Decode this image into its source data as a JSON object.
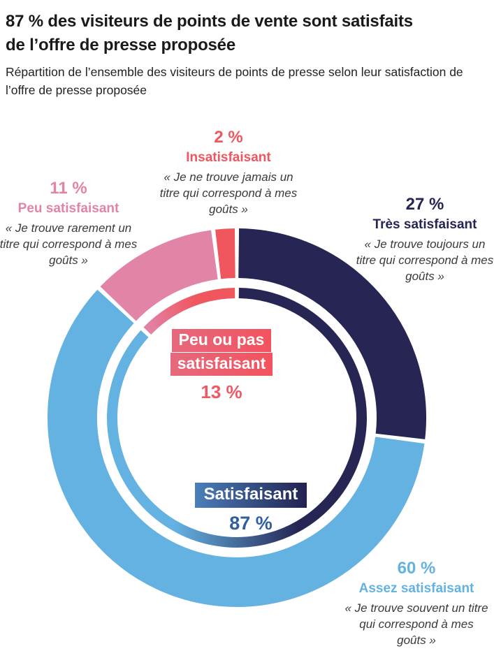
{
  "palette": {
    "navy": "#262553",
    "light_blue": "#64b2e2",
    "pink": "#e283a8",
    "red": "#f0565e",
    "value_red_text": "#ef5964",
    "value_blue_text": "#2f5f9e",
    "title_text": "#1a1a1a",
    "quote_text": "#3a3a3a"
  },
  "header": {
    "title_line1": "87 % des visiteurs de points de vente sont satisfaits",
    "title_line2": "de l’offre de presse proposée",
    "subtitle": "Répartition de l’ensemble des visiteurs de points de presse selon leur satisfaction de l’offre de presse proposée"
  },
  "callouts": {
    "insatisfaisant": {
      "pct": "2 %",
      "name": "Insatisfaisant",
      "quote": "« Je ne trouve jamais un titre qui correspond à mes goûts »"
    },
    "peu_satisfaisant": {
      "pct": "11 %",
      "name": "Peu satisfaisant",
      "quote": "« Je trouve rarement un titre qui correspond à mes goûts »"
    },
    "tres_satisfaisant": {
      "pct": "27 %",
      "name": "Très satisfaisant",
      "quote": "« Je trouve toujours un titre qui correspond à mes goûts »"
    },
    "assez_satisfaisant": {
      "pct": "60 %",
      "name": "Assez satisfaisant",
      "quote": "« Je trouve souvent un titre qui correspond à mes goûts »"
    }
  },
  "center_labels": {
    "unsatisfied": {
      "line1": "Peu ou pas",
      "line2": "satisfaisant",
      "value": "13 %"
    },
    "satisfied": {
      "label": "Satisfaisant",
      "value": "87 %"
    }
  },
  "chart_data": {
    "type": "pie",
    "subtype": "donut-with-inner-aggregate-ring",
    "title": "87 % des visiteurs de points de vente sont satisfaits de l’offre de presse proposée",
    "subtitle": "Répartition de l’ensemble des visiteurs de points de presse selon leur satisfaction de l’offre de presse proposée",
    "unit": "%",
    "start_angle_deg": 0,
    "direction": "clockwise",
    "segments": [
      {
        "label": "Très satisfaisant",
        "value": 27,
        "color": "#262553",
        "quote": "« Je trouve toujours un titre qui correspond à mes goûts »"
      },
      {
        "label": "Assez satisfaisant",
        "value": 60,
        "color": "#64b2e2",
        "quote": "« Je trouve souvent un titre qui correspond à mes goûts »"
      },
      {
        "label": "Peu satisfaisant",
        "value": 11,
        "color": "#e283a8",
        "quote": "« Je trouve rarement un titre qui correspond à mes goûts »"
      },
      {
        "label": "Insatisfaisant",
        "value": 2,
        "color": "#f0565e",
        "quote": "« Je ne trouve jamais un titre qui correspond à mes goûts »"
      }
    ],
    "aggregates": [
      {
        "label": "Satisfaisant",
        "value": 87
      },
      {
        "label": "Peu ou pas satisfaisant",
        "value": 13
      }
    ]
  }
}
